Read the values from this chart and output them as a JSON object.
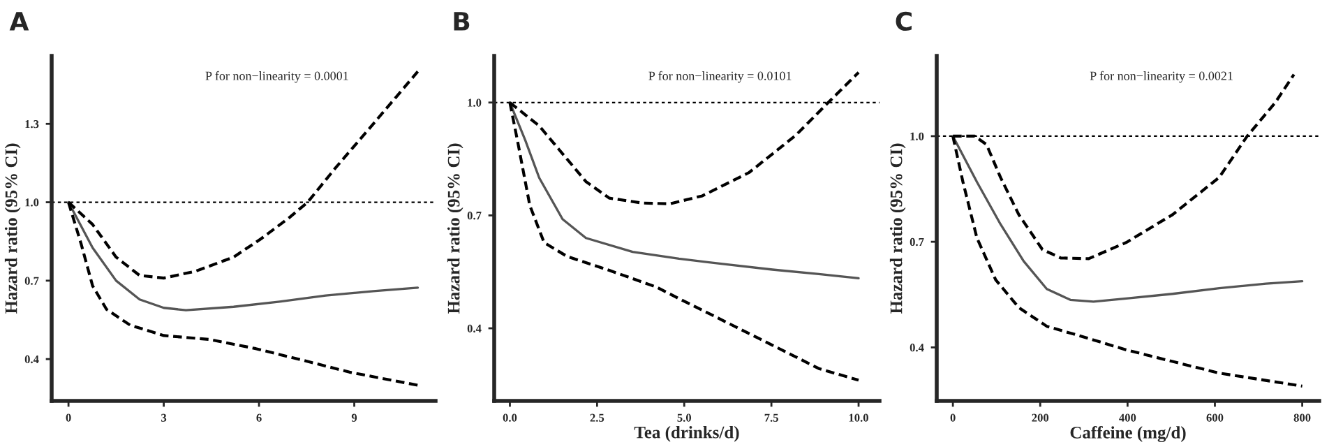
{
  "chart_data": [
    {
      "type": "line",
      "title": "A",
      "ylabel": "Hazard ratio (95% CI)",
      "xlim": [
        -0.53,
        11.56
      ],
      "xticks": [
        0,
        3,
        6,
        9
      ],
      "ylim": [
        0.24,
        1.56
      ],
      "yticks": [
        {
          "value": 0.4,
          "label": "0.4"
        },
        {
          "value": 0.7,
          "label": "0.7"
        },
        {
          "value": 1.0,
          "label": "1.0"
        },
        {
          "value": 1.3,
          "label": "1.3"
        }
      ],
      "grid": false,
      "legend": false,
      "series": [
        {
          "color": "#555555",
          "line_style": "solid",
          "x": [
            0,
            0.76,
            1.5,
            2.24,
            3,
            3.7,
            5.2,
            6.65,
            8.1,
            9.6,
            11
          ],
          "values": [
            1.0,
            0.826,
            0.7,
            0.628,
            0.596,
            0.587,
            0.6,
            0.62,
            0.643,
            0.66,
            0.673
          ]
        },
        {
          "color": "#000000",
          "line_style": "dashed",
          "x": [
            0,
            0.76,
            1.5,
            2.24,
            3,
            4,
            5.2,
            6.06,
            6.94,
            7.53,
            8.4,
            9.6,
            11
          ],
          "values": [
            1.0,
            0.915,
            0.79,
            0.72,
            0.71,
            0.736,
            0.79,
            0.86,
            0.94,
            1.0,
            1.13,
            1.3,
            1.5
          ]
        },
        {
          "color": "#000000",
          "line_style": "dashed",
          "x": [
            0,
            0.4,
            0.76,
            1.2,
            1.94,
            3,
            4.44,
            5.9,
            7.4,
            8.85,
            11
          ],
          "values": [
            1.0,
            0.84,
            0.68,
            0.59,
            0.53,
            0.49,
            0.475,
            0.44,
            0.395,
            0.35,
            0.3
          ]
        }
      ],
      "ref_lines": [
        {
          "axis": "y",
          "value": 1.0,
          "color": "#000000",
          "line_style": "dotted"
        }
      ],
      "annotations": [
        "P for non−linearity = 0.0001"
      ]
    },
    {
      "type": "line",
      "title": "B",
      "xlabel": "Tea (drinks/d)",
      "ylabel": "Hazard ratio (95% CI)",
      "xlim": [
        -0.45,
        10.6
      ],
      "xticks": [
        {
          "value": 0,
          "label": "0.0"
        },
        2.5,
        {
          "value": 5,
          "label": "5.0"
        },
        7.5,
        {
          "value": 10,
          "label": "10.0"
        }
      ],
      "ylim": [
        0.207,
        1.124
      ],
      "yticks": [
        {
          "value": 0.4,
          "label": "0.4"
        },
        {
          "value": 0.7,
          "label": "0.7"
        },
        {
          "value": 1.0,
          "label": "1.0"
        }
      ],
      "grid": false,
      "legend": false,
      "series": [
        {
          "color": "#555555",
          "line_style": "solid",
          "x": [
            0,
            0.44,
            0.84,
            1.51,
            2.18,
            3.52,
            4.85,
            6.19,
            7.53,
            8.86,
            10
          ],
          "values": [
            1.0,
            0.9,
            0.8,
            0.69,
            0.64,
            0.603,
            0.585,
            0.57,
            0.556,
            0.544,
            0.533
          ]
        },
        {
          "color": "#000000",
          "line_style": "dashed",
          "x": [
            0,
            0.84,
            1.51,
            2.18,
            2.85,
            3.78,
            4.59,
            5.52,
            6.86,
            8.2,
            9.13,
            10
          ],
          "values": [
            1.0,
            0.938,
            0.864,
            0.79,
            0.746,
            0.733,
            0.731,
            0.752,
            0.814,
            0.913,
            1.0,
            1.08
          ]
        },
        {
          "color": "#000000",
          "line_style": "dashed",
          "x": [
            0,
            0.24,
            0.57,
            0.98,
            1.64,
            2.85,
            4.19,
            4.85,
            6.19,
            7.53,
            8.86,
            10
          ],
          "values": [
            1.0,
            0.888,
            0.727,
            0.628,
            0.591,
            0.554,
            0.51,
            0.479,
            0.417,
            0.355,
            0.293,
            0.262
          ]
        }
      ],
      "ref_lines": [
        {
          "axis": "y",
          "value": 1.0,
          "color": "#000000",
          "line_style": "dotted"
        }
      ],
      "annotations": [
        "P for non−linearity = 0.0101"
      ]
    },
    {
      "type": "line",
      "title": "C",
      "xlabel": "Caffeine (mg/d)",
      "ylabel": "Hazard ratio (95% CI)",
      "xlim": [
        -37,
        839
      ],
      "xticks": [
        0,
        200,
        400,
        600,
        800
      ],
      "ylim": [
        0.248,
        1.228
      ],
      "yticks": [
        {
          "value": 0.4,
          "label": "0.4"
        },
        {
          "value": 0.7,
          "label": "0.7"
        },
        {
          "value": 1.0,
          "label": "1.0"
        }
      ],
      "grid": false,
      "legend": false,
      "series": [
        {
          "color": "#555555",
          "line_style": "solid",
          "x": [
            0,
            55,
            109,
            162,
            215,
            269,
            322,
            397,
            503,
            610,
            717,
            800
          ],
          "values": [
            1.0,
            0.87,
            0.75,
            0.645,
            0.566,
            0.535,
            0.53,
            0.539,
            0.552,
            0.568,
            0.581,
            0.588
          ]
        },
        {
          "color": "#000000",
          "line_style": "dashed",
          "x": [
            0,
            50,
            77,
            109,
            151,
            205,
            247,
            311,
            397,
            503,
            610,
            674,
            738,
            781
          ],
          "values": [
            1.0,
            1.0,
            0.976,
            0.883,
            0.777,
            0.678,
            0.654,
            0.652,
            0.698,
            0.777,
            0.883,
            1.0,
            1.095,
            1.175
          ]
        },
        {
          "color": "#000000",
          "line_style": "dashed",
          "x": [
            0,
            23,
            55,
            98,
            151,
            215,
            290,
            397,
            503,
            610,
            800
          ],
          "values": [
            1.0,
            0.87,
            0.711,
            0.592,
            0.513,
            0.46,
            0.433,
            0.393,
            0.36,
            0.327,
            0.29
          ]
        }
      ],
      "ref_lines": [
        {
          "axis": "y",
          "value": 1.0,
          "color": "#000000",
          "line_style": "dotted"
        }
      ],
      "annotations": [
        "P for non−linearity = 0.0021"
      ]
    }
  ]
}
